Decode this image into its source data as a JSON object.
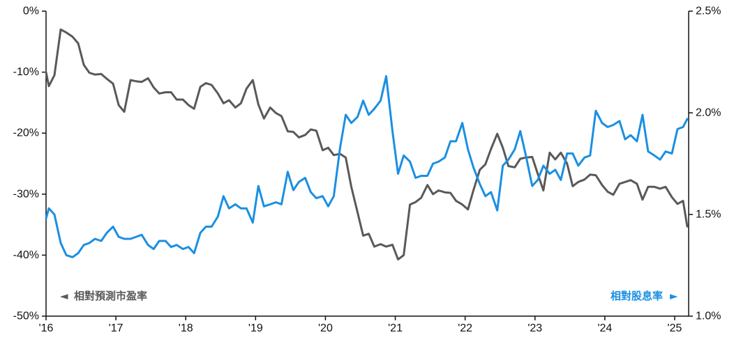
{
  "chart_data": {
    "type": "line",
    "title": "",
    "x_tick_labels": [
      "'16",
      "'17",
      "'18",
      "'19",
      "'20",
      "'21",
      "'22",
      "'23",
      "'24",
      "'25"
    ],
    "xlim": [
      2016.0,
      2025.2
    ],
    "left_axis": {
      "ticks": [
        0,
        -10,
        -20,
        -30,
        -40,
        -50
      ],
      "tick_labels": [
        "0%",
        "-10%",
        "-20%",
        "-30%",
        "-40%",
        "-50%"
      ],
      "ylim": [
        -50,
        0
      ]
    },
    "right_axis": {
      "ticks": [
        2.5,
        2.0,
        1.5,
        1.0
      ],
      "tick_labels": [
        "2.5%",
        "2.0%",
        "1.5%",
        "1.0%"
      ],
      "ylim": [
        1.0,
        2.5
      ]
    },
    "grid": false,
    "legend": {
      "left": {
        "arrow": "◄",
        "label": "相對預測市盈率",
        "placement": "bottom-left"
      },
      "right": {
        "arrow": "►",
        "label": "相對股息率",
        "placement": "bottom-right"
      }
    },
    "series": [
      {
        "name": "相對預測市盈率",
        "axis": "left",
        "color": "#595959",
        "x": [
          2016.0,
          2016.04,
          2016.12,
          2016.21,
          2016.29,
          2016.38,
          2016.46,
          2016.54,
          2016.62,
          2016.7,
          2016.79,
          2016.87,
          2016.96,
          2017.04,
          2017.12,
          2017.21,
          2017.29,
          2017.37,
          2017.46,
          2017.54,
          2017.62,
          2017.71,
          2017.79,
          2017.87,
          2017.96,
          2018.04,
          2018.12,
          2018.21,
          2018.29,
          2018.37,
          2018.46,
          2018.54,
          2018.62,
          2018.71,
          2018.79,
          2018.87,
          2018.96,
          2019.04,
          2019.12,
          2019.21,
          2019.29,
          2019.37,
          2019.46,
          2019.54,
          2019.62,
          2019.71,
          2019.79,
          2019.87,
          2019.96,
          2020.04,
          2020.12,
          2020.21,
          2020.29,
          2020.37,
          2020.46,
          2020.54,
          2020.62,
          2020.7,
          2020.79,
          2020.87,
          2020.96,
          2021.04,
          2021.12,
          2021.21,
          2021.29,
          2021.37,
          2021.46,
          2021.54,
          2021.62,
          2021.71,
          2021.79,
          2021.87,
          2021.96,
          2022.04,
          2022.12,
          2022.21,
          2022.29,
          2022.37,
          2022.46,
          2022.54,
          2022.62,
          2022.71,
          2022.79,
          2022.87,
          2022.96,
          2023.04,
          2023.12,
          2023.21,
          2023.29,
          2023.37,
          2023.46,
          2023.54,
          2023.62,
          2023.71,
          2023.79,
          2023.87,
          2023.96,
          2024.04,
          2024.12,
          2024.21,
          2024.29,
          2024.37,
          2024.46,
          2024.54,
          2024.62,
          2024.71,
          2024.79,
          2024.87,
          2024.96,
          2025.04,
          2025.12,
          2025.18
        ],
        "values": [
          -10.0,
          -12.3,
          -10.5,
          -3.0,
          -3.5,
          -4.2,
          -5.3,
          -8.8,
          -10.1,
          -10.4,
          -10.3,
          -11.1,
          -11.9,
          -15.4,
          -16.5,
          -11.3,
          -11.5,
          -11.6,
          -11.0,
          -12.5,
          -13.5,
          -13.3,
          -13.3,
          -14.5,
          -14.5,
          -15.4,
          -16.0,
          -12.4,
          -11.8,
          -12.1,
          -13.5,
          -15.1,
          -14.6,
          -15.8,
          -15.1,
          -12.7,
          -11.3,
          -15.3,
          -17.6,
          -15.8,
          -16.7,
          -17.2,
          -19.7,
          -19.8,
          -20.7,
          -20.3,
          -19.4,
          -19.6,
          -22.8,
          -22.4,
          -23.6,
          -23.4,
          -24.0,
          -28.8,
          -33.0,
          -36.8,
          -36.5,
          -38.6,
          -38.2,
          -38.6,
          -38.3,
          -40.7,
          -40.0,
          -31.7,
          -31.3,
          -30.6,
          -28.5,
          -30.0,
          -29.4,
          -29.7,
          -29.8,
          -31.1,
          -31.7,
          -32.5,
          -29.3,
          -26.0,
          -25.1,
          -22.6,
          -20.1,
          -22.4,
          -25.4,
          -25.6,
          -24.2,
          -24.0,
          -23.9,
          -26.7,
          -29.4,
          -23.2,
          -24.3,
          -23.2,
          -25.0,
          -28.7,
          -28.0,
          -27.6,
          -26.8,
          -26.9,
          -28.5,
          -29.6,
          -30.1,
          -28.3,
          -28.0,
          -27.7,
          -28.3,
          -30.9,
          -28.8,
          -28.8,
          -29.1,
          -28.8,
          -30.5,
          -31.6,
          -31.1,
          -35.3
        ]
      },
      {
        "name": "相對股息率",
        "axis": "right",
        "color": "#1a8fe3",
        "x": [
          2016.0,
          2016.04,
          2016.12,
          2016.21,
          2016.29,
          2016.38,
          2016.46,
          2016.54,
          2016.62,
          2016.7,
          2016.79,
          2016.87,
          2016.96,
          2017.04,
          2017.12,
          2017.21,
          2017.29,
          2017.37,
          2017.46,
          2017.54,
          2017.62,
          2017.71,
          2017.79,
          2017.87,
          2017.96,
          2018.04,
          2018.12,
          2018.21,
          2018.29,
          2018.37,
          2018.46,
          2018.54,
          2018.62,
          2018.71,
          2018.79,
          2018.87,
          2018.96,
          2019.04,
          2019.12,
          2019.21,
          2019.29,
          2019.37,
          2019.46,
          2019.54,
          2019.62,
          2019.71,
          2019.79,
          2019.87,
          2019.96,
          2020.04,
          2020.12,
          2020.21,
          2020.29,
          2020.37,
          2020.46,
          2020.54,
          2020.62,
          2020.7,
          2020.79,
          2020.87,
          2020.96,
          2021.04,
          2021.12,
          2021.21,
          2021.29,
          2021.37,
          2021.46,
          2021.54,
          2021.62,
          2021.71,
          2021.79,
          2021.87,
          2021.96,
          2022.04,
          2022.12,
          2022.21,
          2022.29,
          2022.37,
          2022.46,
          2022.54,
          2022.62,
          2022.71,
          2022.79,
          2022.87,
          2022.96,
          2023.04,
          2023.12,
          2023.21,
          2023.29,
          2023.37,
          2023.46,
          2023.54,
          2023.62,
          2023.71,
          2023.79,
          2023.87,
          2023.96,
          2024.04,
          2024.12,
          2024.21,
          2024.29,
          2024.37,
          2024.46,
          2024.54,
          2024.62,
          2024.71,
          2024.79,
          2024.87,
          2024.96,
          2025.04,
          2025.12,
          2025.18
        ],
        "values": [
          1.48,
          1.53,
          1.5,
          1.36,
          1.3,
          1.29,
          1.31,
          1.35,
          1.36,
          1.38,
          1.37,
          1.41,
          1.44,
          1.39,
          1.38,
          1.38,
          1.39,
          1.4,
          1.35,
          1.33,
          1.37,
          1.37,
          1.34,
          1.35,
          1.33,
          1.34,
          1.31,
          1.41,
          1.44,
          1.44,
          1.49,
          1.59,
          1.53,
          1.55,
          1.53,
          1.53,
          1.46,
          1.64,
          1.54,
          1.55,
          1.56,
          1.55,
          1.71,
          1.62,
          1.66,
          1.68,
          1.61,
          1.58,
          1.59,
          1.54,
          1.59,
          1.83,
          1.99,
          1.95,
          1.98,
          2.06,
          1.99,
          2.02,
          2.06,
          2.18,
          1.91,
          1.7,
          1.79,
          1.76,
          1.68,
          1.69,
          1.69,
          1.75,
          1.76,
          1.78,
          1.86,
          1.86,
          1.95,
          1.82,
          1.73,
          1.65,
          1.59,
          1.61,
          1.52,
          1.74,
          1.77,
          1.82,
          1.91,
          1.79,
          1.64,
          1.67,
          1.74,
          1.7,
          1.72,
          1.67,
          1.8,
          1.8,
          1.74,
          1.78,
          1.79,
          2.01,
          1.95,
          1.93,
          1.94,
          1.96,
          1.87,
          1.89,
          1.86,
          1.99,
          1.81,
          1.79,
          1.77,
          1.81,
          1.8,
          1.92,
          1.93,
          1.97
        ]
      }
    ]
  }
}
